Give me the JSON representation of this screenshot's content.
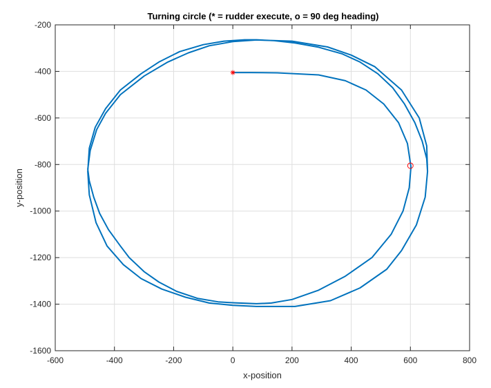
{
  "chart_data": {
    "type": "line",
    "title": "Turning circle (* = rudder execute, o = 90 deg heading)",
    "xlabel": "x-position",
    "ylabel": "y-position",
    "xlim": [
      -600,
      800
    ],
    "ylim": [
      -1600,
      -200
    ],
    "xticks": [
      -600,
      -400,
      -200,
      0,
      200,
      400,
      600,
      800
    ],
    "yticks": [
      -1600,
      -1400,
      -1200,
      -1000,
      -800,
      -600,
      -400,
      -200
    ],
    "xtick_labels": [
      "-600",
      "-400",
      "-200",
      "0",
      "200",
      "400",
      "600",
      "800"
    ],
    "ytick_labels": [
      "-1600",
      "-1400",
      "-1200",
      "-1000",
      "-800",
      "-600",
      "-400",
      "-200"
    ],
    "grid": true,
    "series": [
      {
        "color": "#0072bd",
        "x": [
          0,
          60,
          150,
          290,
          380,
          450,
          510,
          560,
          590,
          602,
          596,
          575,
          535,
          470,
          380,
          290,
          200,
          130,
          80,
          0,
          -50,
          -120,
          -190,
          -250,
          -300,
          -350,
          -380,
          -420,
          -450,
          -470,
          -485,
          -490,
          -482,
          -460,
          -430,
          -380,
          -300,
          -220,
          -150,
          -80,
          0,
          80,
          200,
          320,
          400,
          480,
          570,
          630,
          655,
          658,
          650,
          620,
          570,
          520,
          430,
          330,
          210,
          80,
          0,
          -80,
          -160,
          -240,
          -310,
          -370,
          -425,
          -462,
          -485,
          -490,
          -485,
          -465,
          -430,
          -380,
          -310,
          -250,
          -180,
          -100,
          -30,
          40,
          80,
          140,
          210,
          290,
          370,
          430,
          490,
          540,
          580,
          615,
          640,
          655,
          658
        ],
        "y": [
          -405,
          -405,
          -406,
          -415,
          -440,
          -480,
          -540,
          -620,
          -710,
          -810,
          -900,
          -1000,
          -1100,
          -1200,
          -1280,
          -1340,
          -1380,
          -1395,
          -1398,
          -1394,
          -1390,
          -1375,
          -1345,
          -1305,
          -1260,
          -1200,
          -1150,
          -1080,
          -1010,
          -940,
          -870,
          -820,
          -740,
          -650,
          -580,
          -500,
          -420,
          -360,
          -320,
          -290,
          -272,
          -265,
          -270,
          -295,
          -330,
          -380,
          -480,
          -600,
          -720,
          -830,
          -940,
          -1060,
          -1170,
          -1250,
          -1330,
          -1385,
          -1410,
          -1410,
          -1405,
          -1395,
          -1370,
          -1335,
          -1290,
          -1230,
          -1150,
          -1050,
          -930,
          -830,
          -730,
          -640,
          -560,
          -480,
          -410,
          -360,
          -315,
          -285,
          -270,
          -264,
          -264,
          -268,
          -278,
          -296,
          -325,
          -360,
          -410,
          -470,
          -540,
          -620,
          -700,
          -775,
          -830
        ]
      }
    ],
    "markers": [
      {
        "symbol": "*",
        "label": "rudder execute",
        "x": 0,
        "y": -405,
        "color": "#ff0000"
      },
      {
        "symbol": "o",
        "label": "90 deg heading",
        "x": 600,
        "y": -805,
        "color": "#ff0000"
      }
    ],
    "legend": "none"
  }
}
